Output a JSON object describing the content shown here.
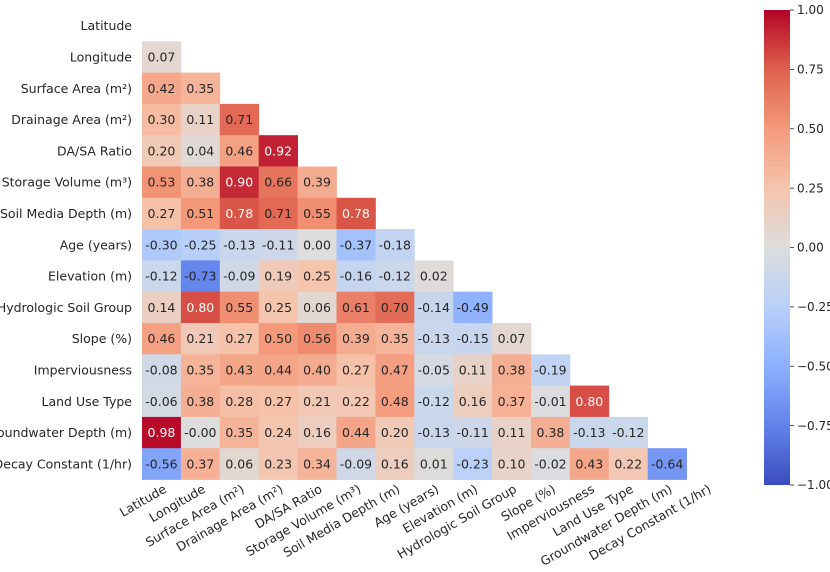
{
  "chart_data": {
    "type": "heatmap",
    "title": "",
    "xlabel": "",
    "ylabel": "",
    "mask": "upper-triangle-including-diagonal",
    "variables": [
      "Latitude",
      "Longitude",
      "Surface Area (m²)",
      "Drainage Area (m²)",
      "DA/SA Ratio",
      "Storage Volume (m³)",
      "Soil Media Depth (m)",
      "Age (years)",
      "Elevation (m)",
      "Hydrologic Soil Group",
      "Slope (%)",
      "Imperviousness",
      "Land Use Type",
      "Groundwater Depth (m)",
      "Decay Constant (1/hr)"
    ],
    "values": [
      [],
      [
        0.07
      ],
      [
        0.42,
        0.35
      ],
      [
        0.3,
        0.11,
        0.71
      ],
      [
        0.2,
        0.04,
        0.46,
        0.92
      ],
      [
        0.53,
        0.38,
        0.9,
        0.66,
        0.39
      ],
      [
        0.27,
        0.51,
        0.78,
        0.71,
        0.55,
        0.78
      ],
      [
        -0.3,
        -0.25,
        -0.13,
        -0.11,
        0.0,
        -0.37,
        -0.18
      ],
      [
        -0.12,
        -0.73,
        -0.09,
        0.19,
        0.25,
        -0.16,
        -0.12,
        0.02
      ],
      [
        0.14,
        0.8,
        0.55,
        0.25,
        0.06,
        0.61,
        0.7,
        -0.14,
        -0.49
      ],
      [
        0.46,
        0.21,
        0.27,
        0.5,
        0.56,
        0.39,
        0.35,
        -0.13,
        -0.15,
        0.07
      ],
      [
        -0.08,
        0.35,
        0.43,
        0.44,
        0.4,
        0.27,
        0.47,
        -0.05,
        0.11,
        0.38,
        -0.19
      ],
      [
        -0.06,
        0.38,
        0.28,
        0.27,
        0.21,
        0.22,
        0.48,
        -0.12,
        0.16,
        0.37,
        -0.01,
        0.8
      ],
      [
        0.98,
        -0.0,
        0.35,
        0.24,
        0.16,
        0.44,
        0.2,
        -0.13,
        -0.11,
        0.11,
        0.38,
        -0.13,
        -0.12
      ],
      [
        -0.56,
        0.37,
        0.06,
        0.23,
        0.34,
        -0.09,
        0.16,
        0.01,
        -0.23,
        0.1,
        -0.02,
        0.43,
        0.22,
        -0.64
      ]
    ],
    "value_labels": [
      [],
      [
        "0.07"
      ],
      [
        "0.42",
        "0.35"
      ],
      [
        "0.30",
        "0.11",
        "0.71"
      ],
      [
        "0.20",
        "0.04",
        "0.46",
        "0.92"
      ],
      [
        "0.53",
        "0.38",
        "0.90",
        "0.66",
        "0.39"
      ],
      [
        "0.27",
        "0.51",
        "0.78",
        "0.71",
        "0.55",
        "0.78"
      ],
      [
        "-0.30",
        "-0.25",
        "-0.13",
        "-0.11",
        "0.00",
        "-0.37",
        "-0.18"
      ],
      [
        "-0.12",
        "-0.73",
        "-0.09",
        "0.19",
        "0.25",
        "-0.16",
        "-0.12",
        "0.02"
      ],
      [
        "0.14",
        "0.80",
        "0.55",
        "0.25",
        "0.06",
        "0.61",
        "0.70",
        "-0.14",
        "-0.49"
      ],
      [
        "0.46",
        "0.21",
        "0.27",
        "0.50",
        "0.56",
        "0.39",
        "0.35",
        "-0.13",
        "-0.15",
        "0.07"
      ],
      [
        "-0.08",
        "0.35",
        "0.43",
        "0.44",
        "0.40",
        "0.27",
        "0.47",
        "-0.05",
        "0.11",
        "0.38",
        "-0.19"
      ],
      [
        "-0.06",
        "0.38",
        "0.28",
        "0.27",
        "0.21",
        "0.22",
        "0.48",
        "-0.12",
        "0.16",
        "0.37",
        "-0.01",
        "0.80"
      ],
      [
        "0.98",
        "-0.00",
        "0.35",
        "0.24",
        "0.16",
        "0.44",
        "0.20",
        "-0.13",
        "-0.11",
        "0.11",
        "0.38",
        "-0.13",
        "-0.12"
      ],
      [
        "-0.56",
        "0.37",
        "0.06",
        "0.23",
        "0.34",
        "-0.09",
        "0.16",
        "0.01",
        "-0.23",
        "0.10",
        "-0.02",
        "0.43",
        "0.22",
        "-0.64"
      ]
    ],
    "colorbar": {
      "colormap": "coolwarm",
      "range": [
        -1.0,
        1.0
      ],
      "ticks": [
        1.0,
        0.75,
        0.5,
        0.25,
        0.0,
        -0.25,
        -0.5,
        -0.75,
        -1.0
      ],
      "tick_labels": [
        "1.00",
        "0.75",
        "0.50",
        "0.25",
        "0.00",
        "−0.25",
        "−0.50",
        "−0.75",
        "−1.00"
      ]
    },
    "colors": {
      "low": "#3b4cc0",
      "mid": "#dddddd",
      "high": "#b40426",
      "text": "#262626"
    }
  }
}
